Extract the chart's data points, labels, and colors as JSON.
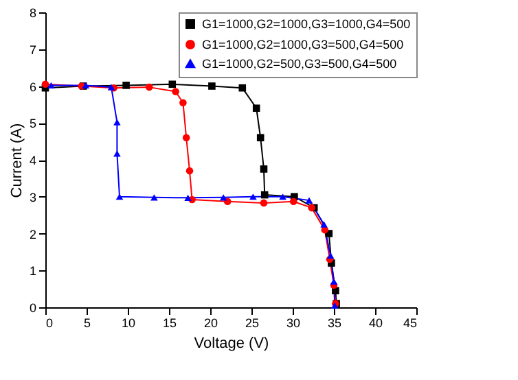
{
  "chart_data": {
    "type": "line",
    "xlabel": "Voltage (V)",
    "ylabel": "Current (A)",
    "xlim": [
      0,
      45
    ],
    "ylim": [
      0,
      8
    ],
    "xticks": [
      0,
      5,
      10,
      15,
      20,
      25,
      30,
      35,
      40,
      45
    ],
    "yticks": [
      0,
      1,
      2,
      3,
      4,
      5,
      6,
      7,
      8
    ],
    "grid": false,
    "legend": "top right",
    "line_style": "solid",
    "series": [
      {
        "name": "G1=1000,G2=1000,G3=1000,G4=500",
        "color": "#000000",
        "marker": "square",
        "x": [
          0,
          4.6,
          9.8,
          15.4,
          20.2,
          23.9,
          25.6,
          26.1,
          26.5,
          26.6,
          30.2,
          32.6,
          34.4,
          34.7,
          35.2,
          35.3
        ],
        "values": [
          5.95,
          6.0,
          6.02,
          6.05,
          6.0,
          5.95,
          5.4,
          4.6,
          3.75,
          3.05,
          3.0,
          2.7,
          2.0,
          1.2,
          0.45,
          0.1
        ]
      },
      {
        "name": "G1=1000,G2=1000,G3=500,G4=500",
        "color": "#ff0000",
        "marker": "circle",
        "x": [
          0,
          4.4,
          8.3,
          12.6,
          15.8,
          16.7,
          17.1,
          17.5,
          17.8,
          22.1,
          26.5,
          30.1,
          32.3,
          33.9,
          34.5,
          35.0,
          35.2
        ],
        "values": [
          6.05,
          6.0,
          5.95,
          5.97,
          5.85,
          5.55,
          4.6,
          3.7,
          2.92,
          2.87,
          2.83,
          2.87,
          2.7,
          2.1,
          1.3,
          0.6,
          0.1
        ]
      },
      {
        "name": "G1=1000,G2=500,G3=500,G4=500",
        "color": "#0000ff",
        "marker": "triangle",
        "x": [
          0.7,
          4.9,
          8.0,
          8.7,
          8.7,
          9.0,
          13.2,
          17.3,
          21.6,
          25.2,
          28.8,
          32.0,
          33.8,
          34.6,
          35.0,
          35.1
        ],
        "values": [
          6.02,
          6.02,
          5.97,
          5.02,
          4.17,
          3.0,
          2.98,
          2.97,
          2.98,
          3.0,
          3.0,
          2.9,
          2.25,
          1.4,
          0.7,
          0.05
        ]
      }
    ]
  }
}
